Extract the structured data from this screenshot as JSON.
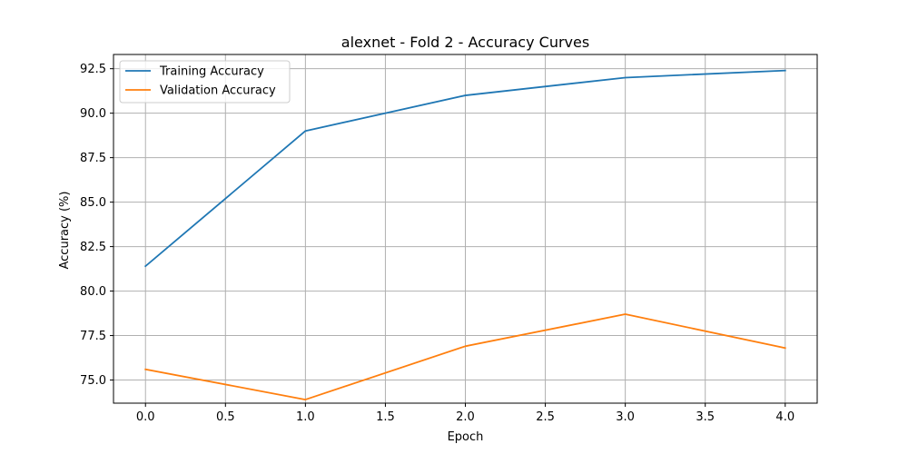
{
  "chart_data": {
    "type": "line",
    "title": "alexnet - Fold 2 - Accuracy Curves",
    "xlabel": "Epoch",
    "ylabel": "Accuracy (%)",
    "x": [
      0,
      1,
      2,
      3,
      4
    ],
    "xlim": [
      -0.2,
      4.2
    ],
    "ylim": [
      73.7,
      93.3
    ],
    "xticks": [
      0.0,
      0.5,
      1.0,
      1.5,
      2.0,
      2.5,
      3.0,
      3.5,
      4.0
    ],
    "xtick_labels": [
      "0.0",
      "0.5",
      "1.0",
      "1.5",
      "2.0",
      "2.5",
      "3.0",
      "3.5",
      "4.0"
    ],
    "yticks": [
      75.0,
      77.5,
      80.0,
      82.5,
      85.0,
      87.5,
      90.0,
      92.5
    ],
    "ytick_labels": [
      "75.0",
      "77.5",
      "80.0",
      "82.5",
      "85.0",
      "87.5",
      "90.0",
      "92.5"
    ],
    "grid": true,
    "legend_position": "top-left",
    "series": [
      {
        "name": "Training Accuracy",
        "color": "#1f77b4",
        "values": [
          81.4,
          89.0,
          91.0,
          92.0,
          92.4
        ]
      },
      {
        "name": "Validation Accuracy",
        "color": "#ff7f0e",
        "values": [
          75.6,
          73.9,
          76.9,
          78.7,
          76.8
        ]
      }
    ]
  }
}
